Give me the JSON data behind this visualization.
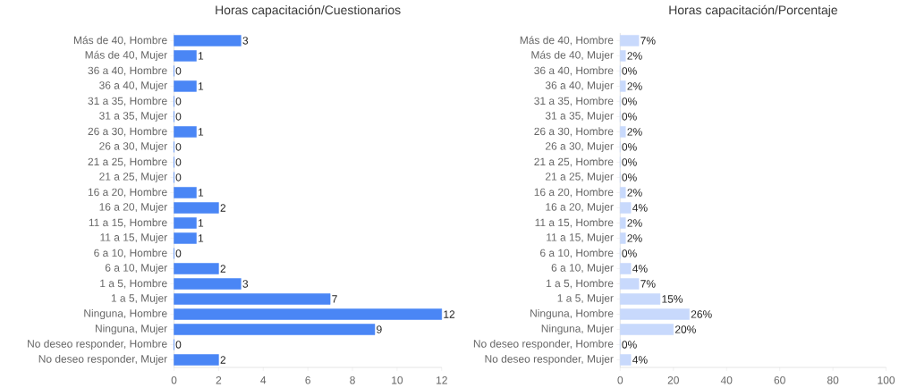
{
  "chart_data": [
    {
      "type": "bar",
      "orientation": "horizontal",
      "title": "Horas capacitación/Cuestionarios",
      "categories": [
        "Más de 40, Hombre",
        "Más de 40, Mujer",
        "36 a 40, Hombre",
        "36 a 40, Mujer",
        "31 a 35, Hombre",
        "31 a 35, Mujer",
        "26 a 30, Hombre",
        "26 a 30, Mujer",
        "21 a 25, Hombre",
        "21 a 25, Mujer",
        "16 a 20, Hombre",
        "16 a 20, Mujer",
        "11 a 15, Hombre",
        "11 a 15, Mujer",
        "6 a 10, Hombre",
        "6 a 10, Mujer",
        "1 a 5, Hombre",
        "1 a 5, Mujer",
        "Ninguna, Hombre",
        "Ninguna, Mujer",
        "No deseo responder, Hombre",
        "No deseo responder, Mujer"
      ],
      "values": [
        3,
        1,
        0,
        1,
        0,
        0,
        1,
        0,
        0,
        0,
        1,
        2,
        1,
        1,
        0,
        2,
        3,
        7,
        12,
        9,
        0,
        2
      ],
      "color": "#4a86f5",
      "xlim": [
        0,
        12
      ],
      "xticks": [
        0,
        2,
        4,
        6,
        8,
        10,
        12
      ],
      "data_labels": true
    },
    {
      "type": "bar",
      "orientation": "horizontal",
      "title": "Horas capacitación/Porcentaje",
      "categories": [
        "Más de 40, Hombre",
        "Más de 40, Mujer",
        "36 a 40, Hombre",
        "36 a 40, Mujer",
        "31 a 35, Hombre",
        "31 a 35, Mujer",
        "26 a 30, Hombre",
        "26 a 30, Mujer",
        "21 a 25, Hombre",
        "21 a 25, Mujer",
        "16 a 20, Hombre",
        "16 a 20, Mujer",
        "11 a 15, Hombre",
        "11 a 15, Mujer",
        "6 a 10, Hombre",
        "6 a 10, Mujer",
        "1 a 5, Hombre",
        "1 a 5, Mujer",
        "Ninguna, Hombre",
        "Ninguna, Mujer",
        "No deseo responder, Hombre",
        "No deseo responder, Mujer"
      ],
      "values": [
        7,
        2,
        0,
        2,
        0,
        0,
        2,
        0,
        0,
        0,
        2,
        4,
        2,
        2,
        0,
        4,
        7,
        15,
        26,
        20,
        0,
        4
      ],
      "value_labels": [
        "7%",
        "2%",
        "0%",
        "2%",
        "0%",
        "0%",
        "2%",
        "0%",
        "0%",
        "0%",
        "2%",
        "4%",
        "2%",
        "2%",
        "0%",
        "4%",
        "7%",
        "15%",
        "26%",
        "20%",
        "0%",
        "4%"
      ],
      "color": "#c8d9fc",
      "xlim": [
        0,
        100
      ],
      "xticks": [
        0,
        20,
        40,
        60,
        80,
        100
      ]
    }
  ]
}
